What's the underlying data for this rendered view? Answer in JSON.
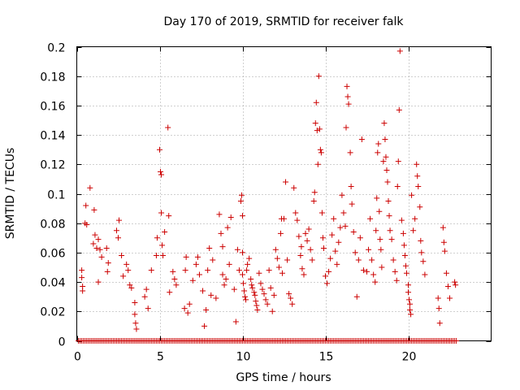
{
  "chart_data": {
    "type": "scatter",
    "title": "Day 170 of 2019, SRMTID for receiver falk",
    "xlabel": "GPS time / hours",
    "ylabel": "SRMTID / TECUs",
    "xlim": [
      0,
      25
    ],
    "ylim": [
      0,
      0.2
    ],
    "xticks": [
      0,
      5,
      10,
      15,
      20
    ],
    "yticks": [
      0,
      0.02,
      0.04,
      0.06,
      0.08,
      0.1,
      0.12,
      0.14,
      0.16,
      0.18,
      0.2
    ],
    "xtick_labels": [
      "0",
      "5",
      "10",
      "15",
      "20"
    ],
    "ytick_labels": [
      "0",
      "0.02",
      "0.04",
      "0.06",
      "0.08",
      "0.1",
      "0.12",
      "0.14",
      "0.16",
      "0.18",
      "0.2"
    ],
    "grid": true,
    "marker": "+",
    "color": "#cc0000",
    "zero_baseline": {
      "x_start": 0.1,
      "x_end": 22.9,
      "step": 0.1,
      "y": 0
    },
    "series": [
      {
        "name": "SRMTID",
        "points": [
          [
            0.3,
            0.048
          ],
          [
            0.3,
            0.043
          ],
          [
            0.35,
            0.037
          ],
          [
            0.35,
            0.034
          ],
          [
            0.5,
            0.08
          ],
          [
            0.55,
            0.092
          ],
          [
            0.6,
            0.079
          ],
          [
            0.8,
            0.104
          ],
          [
            1.0,
            0.066
          ],
          [
            1.05,
            0.089
          ],
          [
            1.1,
            0.072
          ],
          [
            1.2,
            0.063
          ],
          [
            1.3,
            0.04
          ],
          [
            1.3,
            0.069
          ],
          [
            1.4,
            0.062
          ],
          [
            1.5,
            0.057
          ],
          [
            1.8,
            0.063
          ],
          [
            1.85,
            0.047
          ],
          [
            1.9,
            0.053
          ],
          [
            2.4,
            0.075
          ],
          [
            2.5,
            0.07
          ],
          [
            2.55,
            0.082
          ],
          [
            2.7,
            0.058
          ],
          [
            2.8,
            0.044
          ],
          [
            3.0,
            0.052
          ],
          [
            3.1,
            0.048
          ],
          [
            3.2,
            0.038
          ],
          [
            3.3,
            0.036
          ],
          [
            3.5,
            0.026
          ],
          [
            3.5,
            0.018
          ],
          [
            3.55,
            0.012
          ],
          [
            3.6,
            0.008
          ],
          [
            4.1,
            0.03
          ],
          [
            4.2,
            0.035
          ],
          [
            4.3,
            0.022
          ],
          [
            4.5,
            0.048
          ],
          [
            4.8,
            0.058
          ],
          [
            4.85,
            0.07
          ],
          [
            5.0,
            0.13
          ],
          [
            5.05,
            0.115
          ],
          [
            5.1,
            0.113
          ],
          [
            5.1,
            0.087
          ],
          [
            5.15,
            0.065
          ],
          [
            5.2,
            0.058
          ],
          [
            5.3,
            0.074
          ],
          [
            5.5,
            0.145
          ],
          [
            5.55,
            0.085
          ],
          [
            5.6,
            0.033
          ],
          [
            5.8,
            0.047
          ],
          [
            5.9,
            0.042
          ],
          [
            6.0,
            0.038
          ],
          [
            6.5,
            0.022
          ],
          [
            6.55,
            0.048
          ],
          [
            6.6,
            0.057
          ],
          [
            6.7,
            0.019
          ],
          [
            6.8,
            0.025
          ],
          [
            7.0,
            0.041
          ],
          [
            7.2,
            0.052
          ],
          [
            7.3,
            0.057
          ],
          [
            7.4,
            0.045
          ],
          [
            7.6,
            0.034
          ],
          [
            7.7,
            0.01
          ],
          [
            7.8,
            0.021
          ],
          [
            7.9,
            0.048
          ],
          [
            8.0,
            0.063
          ],
          [
            8.1,
            0.031
          ],
          [
            8.2,
            0.055
          ],
          [
            8.4,
            0.029
          ],
          [
            8.6,
            0.086
          ],
          [
            8.7,
            0.073
          ],
          [
            8.8,
            0.064
          ],
          [
            8.8,
            0.045
          ],
          [
            8.9,
            0.038
          ],
          [
            9.0,
            0.042
          ],
          [
            9.1,
            0.077
          ],
          [
            9.2,
            0.052
          ],
          [
            9.3,
            0.084
          ],
          [
            9.5,
            0.035
          ],
          [
            9.6,
            0.013
          ],
          [
            9.7,
            0.062
          ],
          [
            9.8,
            0.048
          ],
          [
            9.9,
            0.095
          ],
          [
            9.95,
            0.099
          ],
          [
            10.0,
            0.085
          ],
          [
            10.0,
            0.06
          ],
          [
            10.0,
            0.045
          ],
          [
            10.05,
            0.039
          ],
          [
            10.1,
            0.034
          ],
          [
            10.15,
            0.03
          ],
          [
            10.2,
            0.028
          ],
          [
            10.25,
            0.048
          ],
          [
            10.3,
            0.052
          ],
          [
            10.4,
            0.056
          ],
          [
            10.5,
            0.042
          ],
          [
            10.55,
            0.038
          ],
          [
            10.6,
            0.036
          ],
          [
            10.7,
            0.033
          ],
          [
            10.75,
            0.031
          ],
          [
            10.8,
            0.027
          ],
          [
            10.85,
            0.024
          ],
          [
            10.9,
            0.021
          ],
          [
            11.0,
            0.046
          ],
          [
            11.1,
            0.039
          ],
          [
            11.2,
            0.035
          ],
          [
            11.3,
            0.032
          ],
          [
            11.4,
            0.028
          ],
          [
            11.5,
            0.025
          ],
          [
            11.6,
            0.048
          ],
          [
            11.7,
            0.036
          ],
          [
            11.8,
            0.02
          ],
          [
            11.9,
            0.031
          ],
          [
            12.0,
            0.062
          ],
          [
            12.1,
            0.056
          ],
          [
            12.2,
            0.05
          ],
          [
            12.3,
            0.073
          ],
          [
            12.35,
            0.083
          ],
          [
            12.4,
            0.046
          ],
          [
            12.5,
            0.083
          ],
          [
            12.6,
            0.108
          ],
          [
            12.7,
            0.055
          ],
          [
            12.8,
            0.032
          ],
          [
            12.9,
            0.029
          ],
          [
            13.0,
            0.025
          ],
          [
            13.1,
            0.104
          ],
          [
            13.2,
            0.087
          ],
          [
            13.3,
            0.082
          ],
          [
            13.4,
            0.071
          ],
          [
            13.5,
            0.058
          ],
          [
            13.55,
            0.064
          ],
          [
            13.6,
            0.049
          ],
          [
            13.7,
            0.045
          ],
          [
            13.8,
            0.073
          ],
          [
            13.9,
            0.068
          ],
          [
            14.0,
            0.076
          ],
          [
            14.1,
            0.062
          ],
          [
            14.2,
            0.055
          ],
          [
            14.3,
            0.095
          ],
          [
            14.35,
            0.101
          ],
          [
            14.4,
            0.148
          ],
          [
            14.45,
            0.162
          ],
          [
            14.5,
            0.143
          ],
          [
            14.55,
            0.12
          ],
          [
            14.6,
            0.18
          ],
          [
            14.65,
            0.144
          ],
          [
            14.7,
            0.13
          ],
          [
            14.75,
            0.128
          ],
          [
            14.8,
            0.087
          ],
          [
            14.85,
            0.07
          ],
          [
            14.9,
            0.063
          ],
          [
            15.0,
            0.044
          ],
          [
            15.1,
            0.039
          ],
          [
            15.2,
            0.047
          ],
          [
            15.3,
            0.056
          ],
          [
            15.4,
            0.072
          ],
          [
            15.5,
            0.083
          ],
          [
            15.6,
            0.061
          ],
          [
            15.7,
            0.052
          ],
          [
            15.8,
            0.067
          ],
          [
            15.9,
            0.077
          ],
          [
            16.0,
            0.099
          ],
          [
            16.1,
            0.087
          ],
          [
            16.2,
            0.078
          ],
          [
            16.25,
            0.145
          ],
          [
            16.3,
            0.173
          ],
          [
            16.35,
            0.166
          ],
          [
            16.4,
            0.161
          ],
          [
            16.5,
            0.128
          ],
          [
            16.55,
            0.105
          ],
          [
            16.6,
            0.093
          ],
          [
            16.7,
            0.074
          ],
          [
            16.8,
            0.06
          ],
          [
            16.9,
            0.03
          ],
          [
            17.0,
            0.055
          ],
          [
            17.1,
            0.07
          ],
          [
            17.2,
            0.137
          ],
          [
            17.3,
            0.048
          ],
          [
            17.5,
            0.047
          ],
          [
            17.6,
            0.062
          ],
          [
            17.7,
            0.083
          ],
          [
            17.8,
            0.055
          ],
          [
            17.9,
            0.045
          ],
          [
            18.0,
            0.04
          ],
          [
            18.05,
            0.075
          ],
          [
            18.1,
            0.097
          ],
          [
            18.15,
            0.128
          ],
          [
            18.2,
            0.134
          ],
          [
            18.25,
            0.088
          ],
          [
            18.3,
            0.069
          ],
          [
            18.35,
            0.062
          ],
          [
            18.4,
            0.05
          ],
          [
            18.5,
            0.122
          ],
          [
            18.55,
            0.148
          ],
          [
            18.6,
            0.137
          ],
          [
            18.65,
            0.125
          ],
          [
            18.7,
            0.116
          ],
          [
            18.75,
            0.108
          ],
          [
            18.8,
            0.095
          ],
          [
            18.85,
            0.085
          ],
          [
            18.9,
            0.075
          ],
          [
            19.0,
            0.069
          ],
          [
            19.1,
            0.055
          ],
          [
            19.2,
            0.047
          ],
          [
            19.3,
            0.041
          ],
          [
            19.35,
            0.105
          ],
          [
            19.4,
            0.122
          ],
          [
            19.45,
            0.157
          ],
          [
            19.5,
            0.197
          ],
          [
            19.6,
            0.082
          ],
          [
            19.7,
            0.073
          ],
          [
            19.75,
            0.065
          ],
          [
            19.8,
            0.058
          ],
          [
            19.85,
            0.051
          ],
          [
            19.9,
            0.046
          ],
          [
            20.0,
            0.038
          ],
          [
            20.0,
            0.033
          ],
          [
            20.05,
            0.028
          ],
          [
            20.1,
            0.025
          ],
          [
            20.1,
            0.021
          ],
          [
            20.15,
            0.018
          ],
          [
            20.2,
            0.099
          ],
          [
            20.3,
            0.075
          ],
          [
            20.4,
            0.083
          ],
          [
            20.5,
            0.12
          ],
          [
            20.55,
            0.112
          ],
          [
            20.6,
            0.105
          ],
          [
            20.7,
            0.091
          ],
          [
            20.75,
            0.068
          ],
          [
            20.8,
            0.06
          ],
          [
            20.9,
            0.054
          ],
          [
            21.0,
            0.045
          ],
          [
            21.8,
            0.029
          ],
          [
            21.85,
            0.022
          ],
          [
            21.9,
            0.012
          ],
          [
            22.1,
            0.077
          ],
          [
            22.15,
            0.067
          ],
          [
            22.2,
            0.061
          ],
          [
            22.3,
            0.046
          ],
          [
            22.4,
            0.037
          ],
          [
            22.5,
            0.029
          ],
          [
            22.8,
            0.04
          ],
          [
            22.85,
            0.038
          ]
        ]
      }
    ]
  }
}
